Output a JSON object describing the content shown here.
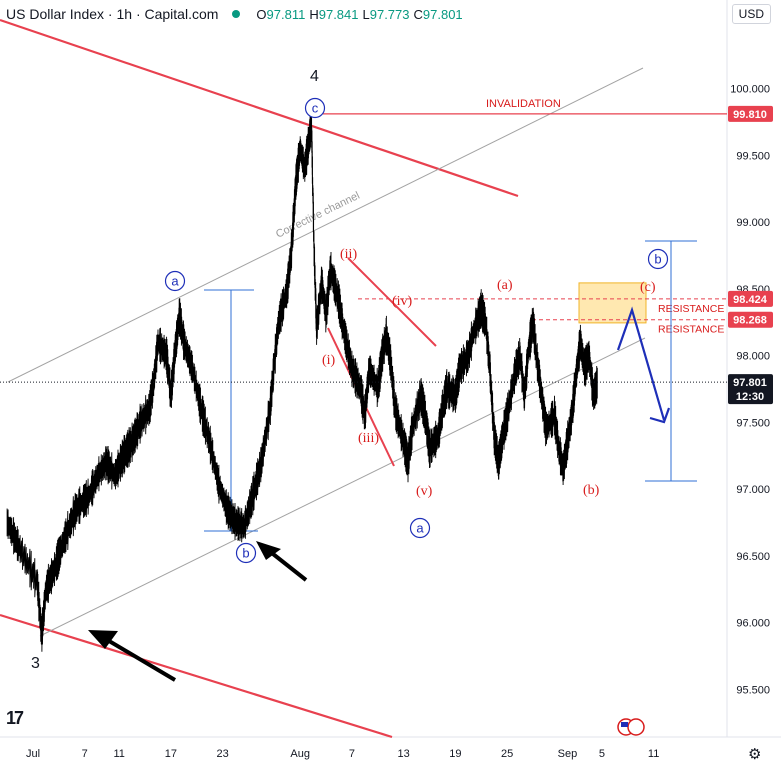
{
  "header": {
    "title": "US Dollar Index · 1h · Capital.com",
    "open_label": "O",
    "open": "97.811",
    "high_label": "H",
    "high": "97.841",
    "low_label": "L",
    "low": "97.773",
    "close_label": "C",
    "close": "97.801",
    "currency": "USD"
  },
  "chart_data": {
    "type": "line",
    "title": "US Dollar Index · 1h · Capital.com",
    "ylim": [
      95.1,
      100.55
    ],
    "y_ticks": [
      "100.000",
      "99.500",
      "99.000",
      "98.500",
      "98.000",
      "97.500",
      "97.000",
      "96.500",
      "96.000",
      "95.500"
    ],
    "y_tick_values": [
      100.0,
      99.5,
      99.0,
      98.5,
      98.0,
      97.5,
      97.0,
      96.5,
      96.0,
      95.5
    ],
    "x_ticks": [
      "Jul",
      "7",
      "11",
      "17",
      "23",
      "Aug",
      "7",
      "13",
      "19",
      "25",
      "Sep",
      "5",
      "11"
    ],
    "x_tick_days": [
      0,
      6,
      10,
      16,
      22,
      31,
      37,
      43,
      49,
      55,
      62,
      66,
      72
    ],
    "xlim_days": [
      -3,
      78
    ],
    "price_path": [
      [
        -3.0,
        96.75
      ],
      [
        -1.5,
        96.55
      ],
      [
        0.5,
        96.3
      ],
      [
        1.0,
        95.9
      ],
      [
        1.5,
        96.25
      ],
      [
        2.5,
        96.4
      ],
      [
        3.5,
        96.6
      ],
      [
        5.0,
        96.85
      ],
      [
        6.5,
        96.95
      ],
      [
        7.5,
        97.1
      ],
      [
        8.5,
        97.2
      ],
      [
        9.5,
        97.1
      ],
      [
        10.5,
        97.25
      ],
      [
        11.5,
        97.35
      ],
      [
        12.5,
        97.5
      ],
      [
        13.5,
        97.6
      ],
      [
        14.0,
        97.8
      ],
      [
        14.5,
        98.1
      ],
      [
        15.5,
        98.0
      ],
      [
        16.0,
        97.7
      ],
      [
        16.5,
        98.05
      ],
      [
        17.0,
        98.3
      ],
      [
        17.5,
        98.1
      ],
      [
        18.5,
        97.9
      ],
      [
        19.5,
        97.6
      ],
      [
        20.5,
        97.35
      ],
      [
        21.5,
        97.05
      ],
      [
        22.5,
        96.85
      ],
      [
        23.5,
        96.75
      ],
      [
        24.5,
        96.72
      ],
      [
        25.5,
        96.95
      ],
      [
        26.5,
        97.2
      ],
      [
        27.5,
        97.6
      ],
      [
        28.0,
        97.95
      ],
      [
        28.5,
        98.25
      ],
      [
        29.5,
        98.5
      ],
      [
        30.0,
        98.8
      ],
      [
        30.5,
        99.3
      ],
      [
        31.0,
        99.55
      ],
      [
        31.5,
        99.4
      ],
      [
        32.0,
        99.6
      ],
      [
        32.3,
        99.75
      ],
      [
        32.6,
        98.8
      ],
      [
        32.9,
        98.2
      ],
      [
        33.5,
        98.55
      ],
      [
        34.0,
        98.3
      ],
      [
        34.5,
        98.65
      ],
      [
        35.5,
        98.4
      ],
      [
        36.0,
        98.2
      ],
      [
        37.0,
        97.9
      ],
      [
        38.0,
        97.75
      ],
      [
        38.5,
        97.55
      ],
      [
        39.0,
        97.9
      ],
      [
        40.0,
        97.75
      ],
      [
        40.5,
        98.0
      ],
      [
        41.0,
        98.15
      ],
      [
        41.5,
        97.95
      ],
      [
        42.0,
        97.6
      ],
      [
        43.0,
        97.35
      ],
      [
        43.5,
        97.2
      ],
      [
        44.0,
        97.45
      ],
      [
        45.0,
        97.7
      ],
      [
        45.5,
        97.55
      ],
      [
        46.0,
        97.3
      ],
      [
        47.0,
        97.4
      ],
      [
        47.5,
        97.6
      ],
      [
        48.0,
        97.75
      ],
      [
        49.0,
        97.7
      ],
      [
        49.5,
        97.9
      ],
      [
        50.5,
        98.0
      ],
      [
        51.0,
        98.15
      ],
      [
        52.0,
        98.35
      ],
      [
        52.5,
        98.25
      ],
      [
        53.0,
        97.9
      ],
      [
        53.5,
        97.4
      ],
      [
        54.0,
        97.2
      ],
      [
        54.5,
        97.4
      ],
      [
        55.0,
        97.55
      ],
      [
        56.0,
        97.9
      ],
      [
        56.5,
        98.0
      ],
      [
        57.0,
        97.7
      ],
      [
        57.5,
        98.05
      ],
      [
        58.0,
        98.25
      ],
      [
        58.5,
        97.95
      ],
      [
        59.0,
        97.7
      ],
      [
        59.5,
        97.45
      ],
      [
        60.5,
        97.55
      ],
      [
        61.0,
        97.3
      ],
      [
        61.5,
        97.15
      ],
      [
        62.0,
        97.35
      ],
      [
        62.5,
        97.55
      ],
      [
        63.0,
        97.85
      ],
      [
        63.5,
        98.1
      ],
      [
        64.0,
        97.9
      ],
      [
        64.5,
        98.0
      ],
      [
        65.0,
        97.7
      ],
      [
        65.5,
        97.8
      ]
    ],
    "invalidation_level": 99.81,
    "resistance_levels": [
      98.424,
      98.268
    ],
    "price_labels": [
      "99.810",
      "98.424",
      "98.268"
    ],
    "current_price": "97.801",
    "countdown": "12:30",
    "annotations": {
      "wave_3": "3",
      "wave_4": "4",
      "wave_a_top": "a",
      "wave_b_low": "b",
      "wave_c_top": "c",
      "wave_a_blue": "a",
      "wave_b_blue": "b",
      "wave_i": "(i)",
      "wave_ii": "(ii)",
      "wave_iii": "(iii)",
      "wave_iv": "(iv)",
      "wave_v": "(v)",
      "wave_a_red": "(a)",
      "wave_b_red": "(b)",
      "wave_c_red": "(c)",
      "invalidation": "INVALIDATION",
      "resistance_1": "RESISTANCE",
      "resistance_2": "RESISTANCE",
      "channel": "Corrective channel"
    },
    "colors": {
      "candles": "#000000",
      "trendline": "#e8414f",
      "channel": "#a3a3a3",
      "wave_blue": "#1e2fb8",
      "wave_red": "#d81b1b",
      "measure": "#2f6fd6",
      "resistance_zone": "#ffe8b0",
      "resistance_border": "#f0b429"
    }
  },
  "footer": {
    "tv_logo": "17"
  }
}
